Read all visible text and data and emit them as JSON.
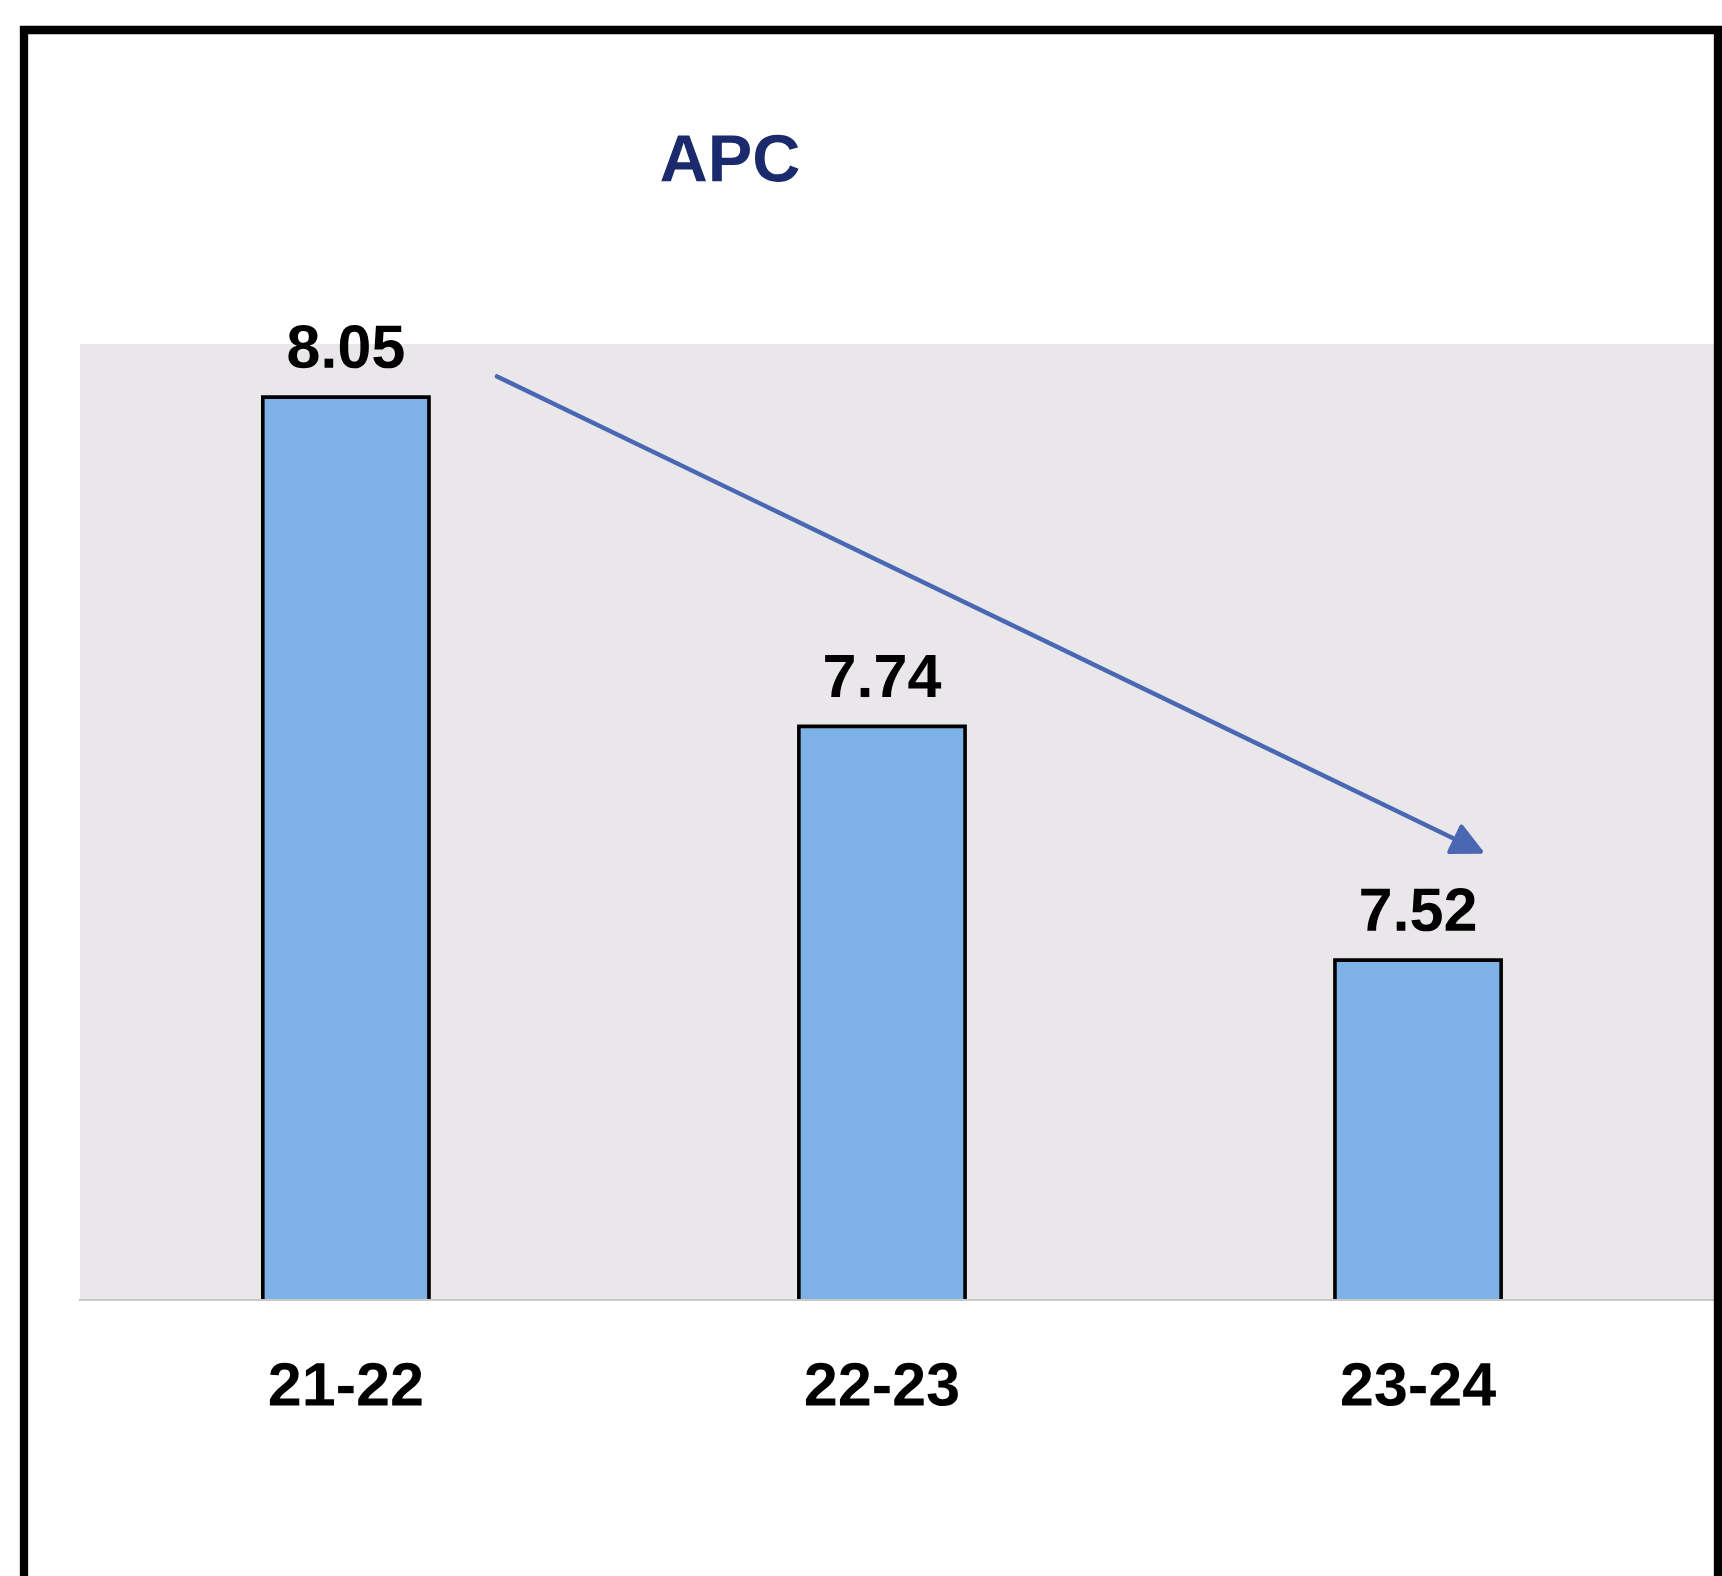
{
  "chart_data": {
    "type": "bar",
    "title": "APC",
    "categories": [
      "21-22",
      "22-23",
      "23-24"
    ],
    "values": [
      8.05,
      7.74,
      7.52
    ],
    "color": "#7eb1e5",
    "ylim": [
      7.2,
      8.1
    ],
    "tick_labels": "x",
    "data_labels": true,
    "grid": false,
    "legend": false
  }
}
